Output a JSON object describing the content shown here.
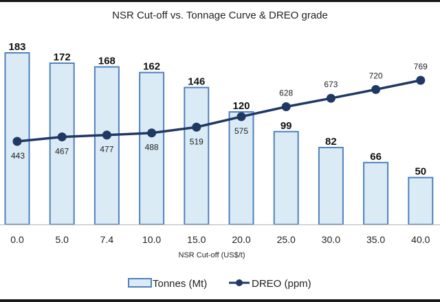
{
  "chart_data": {
    "type": "bar+line",
    "title": "NSR Cut-off vs. Tonnage Curve & DREO grade",
    "xlabel": "NSR Cut-off (US$/t)",
    "ylabel": "",
    "categories": [
      "0.0",
      "5.0",
      "7.4",
      "10.0",
      "15.0",
      "20.0",
      "25.0",
      "30.0",
      "35.0",
      "40.0"
    ],
    "series": [
      {
        "name": "Tonnes (Mt)",
        "type": "bar",
        "values": [
          183,
          172,
          168,
          162,
          146,
          120,
          99,
          82,
          66,
          50
        ],
        "color_fill": "#daebf5",
        "color_stroke": "#4f81bd"
      },
      {
        "name": "DREO (ppm)",
        "type": "line",
        "values": [
          443,
          467,
          477,
          488,
          519,
          575,
          628,
          673,
          720,
          769
        ],
        "color": "#1f3864"
      }
    ],
    "bar_axis_range": [
      0,
      183
    ],
    "line_axis_range": [
      443,
      769
    ],
    "grid": false,
    "legend": "bottom-center"
  }
}
